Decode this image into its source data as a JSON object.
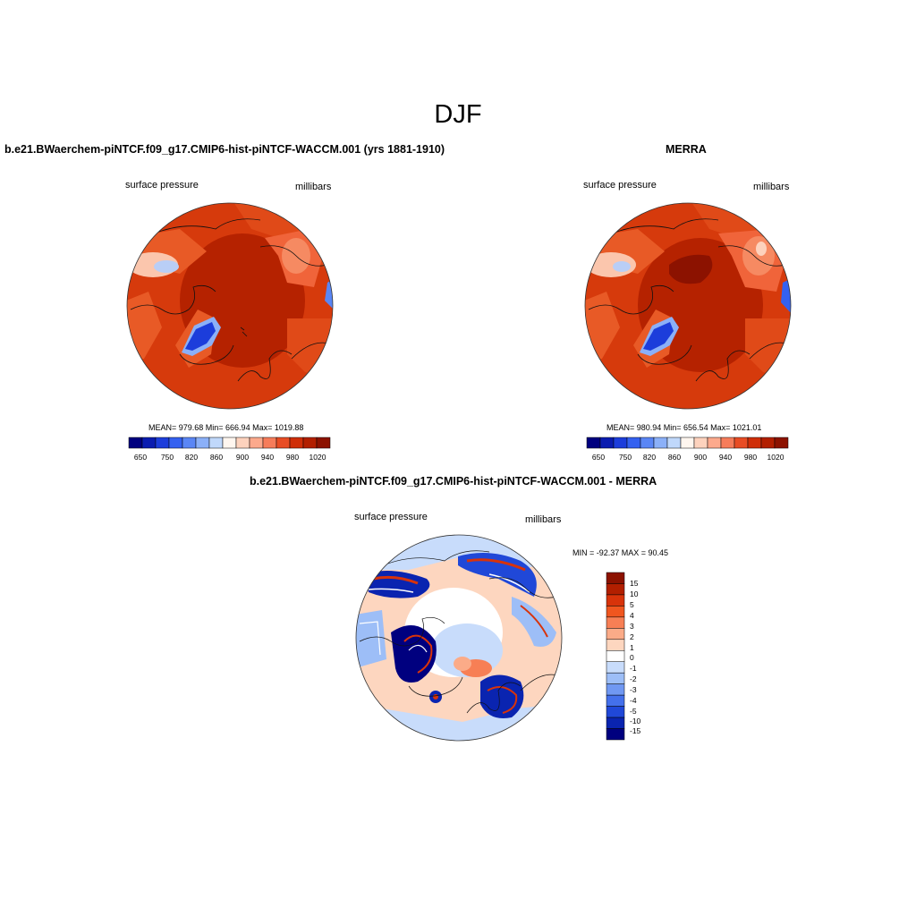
{
  "season": "DJF",
  "panels": [
    {
      "title": "b.e21.BWaerchem-piNTCF.f09_g17.CMIP6-hist-piNTCF-WACCM.001 (yrs 1881-1910)",
      "left_label": "surface pressure",
      "right_label": "millibars",
      "stats": "MEAN= 979.68  Min= 666.94  Max= 1019.88",
      "colorbar": {
        "colors": [
          "#00007f",
          "#0a1cb0",
          "#1c3ddb",
          "#3461f0",
          "#5a86f5",
          "#8bb0f8",
          "#c0d8fb",
          "#fff6ef",
          "#fdd2bd",
          "#fca98c",
          "#f67c5a",
          "#e84c24",
          "#cf2e08",
          "#b21f00",
          "#8c1200"
        ],
        "tick_labels": [
          "650",
          "750",
          "820",
          "860",
          "900",
          "940",
          "980",
          "1020"
        ]
      }
    },
    {
      "title": "MERRA",
      "left_label": "surface pressure",
      "right_label": "millibars",
      "stats": "MEAN= 980.94  Min= 656.54  Max= 1021.01",
      "colorbar": {
        "colors": [
          "#00007f",
          "#0a1cb0",
          "#1c3ddb",
          "#3461f0",
          "#5a86f5",
          "#8bb0f8",
          "#c0d8fb",
          "#fff6ef",
          "#fdd2bd",
          "#fca98c",
          "#f67c5a",
          "#e84c24",
          "#cf2e08",
          "#b21f00",
          "#8c1200"
        ],
        "tick_labels": [
          "650",
          "750",
          "820",
          "860",
          "900",
          "940",
          "980",
          "1020"
        ]
      }
    },
    {
      "title": "b.e21.BWaerchem-piNTCF.f09_g17.CMIP6-hist-piNTCF-WACCM.001 - MERRA",
      "left_label": "surface pressure",
      "right_label": "millibars",
      "stats": "MIN = -92.37 MAX =  90.45",
      "colorbar": {
        "colors": [
          "#8c1200",
          "#b21f00",
          "#d8330a",
          "#f0561f",
          "#f77f55",
          "#fbab88",
          "#fdd6bf",
          "#ffffff",
          "#c8dcfb",
          "#9dbef7",
          "#7098f2",
          "#4470eb",
          "#2048d8",
          "#0a24b0",
          "#00007f"
        ],
        "tick_labels": [
          "15",
          "10",
          "5",
          "4",
          "3",
          "2",
          "1",
          "0",
          "-1",
          "-2",
          "-3",
          "-4",
          "-5",
          "-10",
          "-15"
        ]
      }
    }
  ]
}
